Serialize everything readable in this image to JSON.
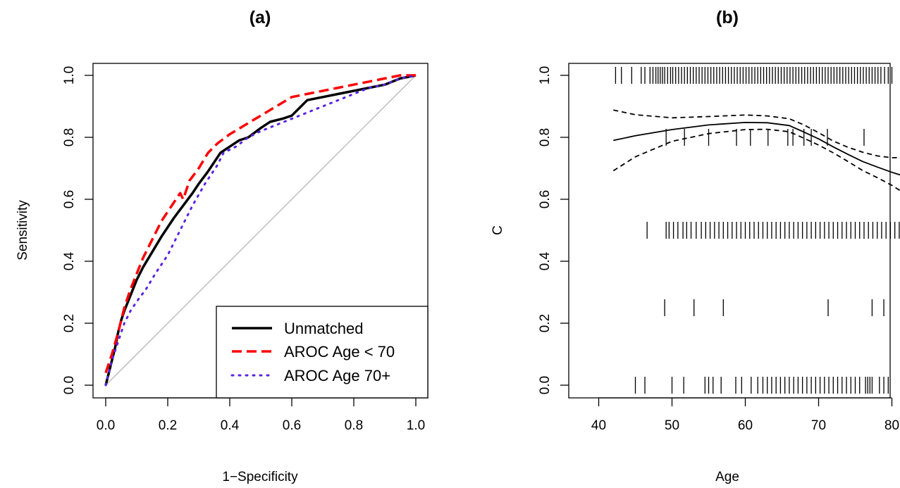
{
  "chart_data": [
    {
      "type": "line",
      "title": "(a)",
      "xlabel": "1−Specificity",
      "ylabel": "Sensitivity",
      "xlim": [
        0,
        1
      ],
      "ylim": [
        0,
        1
      ],
      "xticks": [
        "0.0",
        "0.2",
        "0.4",
        "0.6",
        "0.8",
        "1.0"
      ],
      "yticks": [
        "0.0",
        "0.2",
        "0.4",
        "0.6",
        "0.8",
        "1.0"
      ],
      "legend_position": "bottom-right",
      "reference_line": {
        "from": [
          0,
          0
        ],
        "to": [
          1,
          1
        ],
        "color": "#bebebe"
      },
      "series": [
        {
          "name": "Unmatched",
          "color": "#000000",
          "style": "solid",
          "x": [
            0.0,
            0.01,
            0.02,
            0.03,
            0.04,
            0.05,
            0.06,
            0.08,
            0.1,
            0.12,
            0.15,
            0.18,
            0.2,
            0.22,
            0.25,
            0.28,
            0.3,
            0.33,
            0.35,
            0.37,
            0.4,
            0.43,
            0.46,
            0.5,
            0.53,
            0.57,
            0.6,
            0.63,
            0.65,
            0.7,
            0.75,
            0.8,
            0.85,
            0.9,
            0.95,
            1.0
          ],
          "y": [
            0.0,
            0.04,
            0.08,
            0.12,
            0.17,
            0.21,
            0.24,
            0.29,
            0.34,
            0.38,
            0.43,
            0.48,
            0.51,
            0.54,
            0.58,
            0.62,
            0.65,
            0.69,
            0.72,
            0.75,
            0.77,
            0.79,
            0.8,
            0.83,
            0.85,
            0.86,
            0.87,
            0.9,
            0.92,
            0.93,
            0.94,
            0.95,
            0.96,
            0.97,
            0.99,
            1.0
          ]
        },
        {
          "name": "AROC Age < 70",
          "color": "#ff0000",
          "style": "dashed",
          "x": [
            0.0,
            0.02,
            0.04,
            0.06,
            0.08,
            0.1,
            0.12,
            0.15,
            0.18,
            0.2,
            0.22,
            0.24,
            0.25,
            0.27,
            0.3,
            0.33,
            0.36,
            0.4,
            0.45,
            0.5,
            0.55,
            0.6,
            0.65,
            0.7,
            0.75,
            0.8,
            0.85,
            0.9,
            0.95,
            1.0
          ],
          "y": [
            0.04,
            0.1,
            0.17,
            0.25,
            0.31,
            0.36,
            0.41,
            0.47,
            0.53,
            0.56,
            0.59,
            0.62,
            0.6,
            0.66,
            0.7,
            0.75,
            0.78,
            0.81,
            0.84,
            0.87,
            0.9,
            0.93,
            0.94,
            0.95,
            0.96,
            0.97,
            0.98,
            0.99,
            1.0,
            1.0
          ]
        },
        {
          "name": "AROC Age 70+",
          "color": "#5a23e6",
          "style": "dotted",
          "x": [
            0.0,
            0.02,
            0.04,
            0.06,
            0.08,
            0.1,
            0.13,
            0.16,
            0.2,
            0.24,
            0.28,
            0.32,
            0.36,
            0.38,
            0.42,
            0.46,
            0.5,
            0.55,
            0.6,
            0.65,
            0.7,
            0.75,
            0.8,
            0.85,
            0.9,
            0.95,
            1.0
          ],
          "y": [
            0.0,
            0.08,
            0.14,
            0.2,
            0.24,
            0.27,
            0.31,
            0.36,
            0.42,
            0.5,
            0.58,
            0.65,
            0.71,
            0.75,
            0.77,
            0.8,
            0.82,
            0.84,
            0.86,
            0.88,
            0.9,
            0.92,
            0.94,
            0.96,
            0.97,
            0.99,
            1.0
          ]
        }
      ]
    },
    {
      "type": "line",
      "title": "(b)",
      "xlabel": "Age",
      "ylabel": "C",
      "xlim": [
        35,
        82
      ],
      "ylim": [
        0,
        1
      ],
      "xticks": [
        "40",
        "50",
        "60",
        "70",
        "80"
      ],
      "yticks": [
        "0.0",
        "0.2",
        "0.4",
        "0.6",
        "0.8",
        "1.0"
      ],
      "fit": {
        "x": [
          42,
          45,
          50,
          55,
          60,
          63,
          66,
          68,
          70,
          72,
          74,
          76,
          78,
          80,
          82
        ],
        "y": [
          0.79,
          0.805,
          0.825,
          0.84,
          0.848,
          0.847,
          0.838,
          0.817,
          0.795,
          0.769,
          0.745,
          0.722,
          0.704,
          0.687,
          0.672
        ]
      },
      "upper_band": {
        "x": [
          42,
          45,
          50,
          55,
          60,
          63,
          66,
          68,
          70,
          72,
          74,
          76,
          78,
          80,
          82
        ],
        "y": [
          0.888,
          0.873,
          0.863,
          0.867,
          0.872,
          0.869,
          0.86,
          0.84,
          0.815,
          0.788,
          0.768,
          0.752,
          0.74,
          0.734,
          0.735
        ]
      },
      "lower_band": {
        "x": [
          42,
          45,
          50,
          55,
          60,
          63,
          66,
          68,
          70,
          72,
          74,
          76,
          78,
          80,
          82
        ],
        "y": [
          0.692,
          0.737,
          0.787,
          0.812,
          0.825,
          0.826,
          0.818,
          0.797,
          0.775,
          0.75,
          0.722,
          0.693,
          0.67,
          0.645,
          0.615
        ]
      },
      "rug": [
        {
          "y": 1.0,
          "x": [
            42.3,
            43.1,
            44.5,
            45.8,
            46.3,
            47.0,
            47.4,
            47.8,
            48.1,
            48.4,
            48.7,
            49.0,
            49.4,
            49.8,
            50.1,
            50.5,
            50.9,
            51.3,
            51.7,
            52.1,
            52.5,
            52.9,
            53.3,
            53.7,
            54.1,
            54.5,
            54.9,
            55.3,
            55.7,
            56.1,
            56.5,
            56.9,
            57.3,
            57.7,
            58.1,
            58.5,
            58.9,
            59.3,
            59.7,
            60.1,
            60.5,
            60.9,
            61.3,
            61.7,
            62.1,
            62.5,
            62.9,
            63.3,
            63.7,
            64.1,
            64.5,
            64.9,
            65.3,
            65.7,
            66.1,
            66.5,
            66.9,
            67.3,
            67.7,
            68.1,
            68.5,
            68.9,
            69.3,
            69.7,
            70.1,
            70.5,
            70.9,
            71.3,
            71.7,
            72.1,
            72.5,
            72.9,
            73.3,
            73.7,
            74.1,
            74.5,
            74.9,
            75.3,
            75.7,
            76.1,
            76.5,
            76.9,
            77.3,
            77.7,
            78.1,
            78.5,
            79.0,
            79.5,
            80.0,
            81.8
          ]
        },
        {
          "y": 0.8,
          "x": [
            49.2,
            51.7,
            55.0,
            58.8,
            60.7,
            63.1,
            65.8,
            66.5,
            68.0,
            69.0,
            71.2,
            76.2
          ]
        },
        {
          "y": 0.5,
          "x": [
            46.6,
            49.2,
            49.6,
            50.2,
            50.8,
            51.5,
            52.0,
            52.6,
            53.3,
            54.0,
            54.6,
            55.2,
            55.8,
            56.4,
            57.0,
            57.6,
            58.2,
            58.8,
            59.4,
            60.0,
            60.6,
            61.2,
            61.8,
            62.4,
            63.0,
            63.6,
            64.2,
            64.8,
            65.4,
            66.0,
            66.6,
            67.2,
            67.8,
            68.4,
            69.0,
            69.6,
            70.2,
            70.8,
            71.4,
            72.0,
            72.6,
            73.2,
            73.8,
            74.4,
            75.0,
            75.6,
            76.2,
            76.8,
            77.4,
            78.0,
            78.6,
            79.2,
            79.8,
            80.4,
            81.0
          ]
        },
        {
          "y": 0.25,
          "x": [
            49.0,
            53.0,
            57.0,
            71.3,
            77.3,
            78.9
          ]
        },
        {
          "y": 0.0,
          "x": [
            45.0,
            46.3,
            50.0,
            51.6,
            54.5,
            55.0,
            55.6,
            56.7,
            58.7,
            59.5,
            60.8,
            61.7,
            62.4,
            63.0,
            63.6,
            64.2,
            64.8,
            65.4,
            66.0,
            66.6,
            67.2,
            67.8,
            68.4,
            69.0,
            69.6,
            70.2,
            70.8,
            71.4,
            72.0,
            72.6,
            73.2,
            73.8,
            74.4,
            75.0,
            75.6,
            76.4,
            76.7,
            77.0,
            77.3,
            78.3,
            78.9,
            79.5
          ]
        }
      ]
    }
  ]
}
